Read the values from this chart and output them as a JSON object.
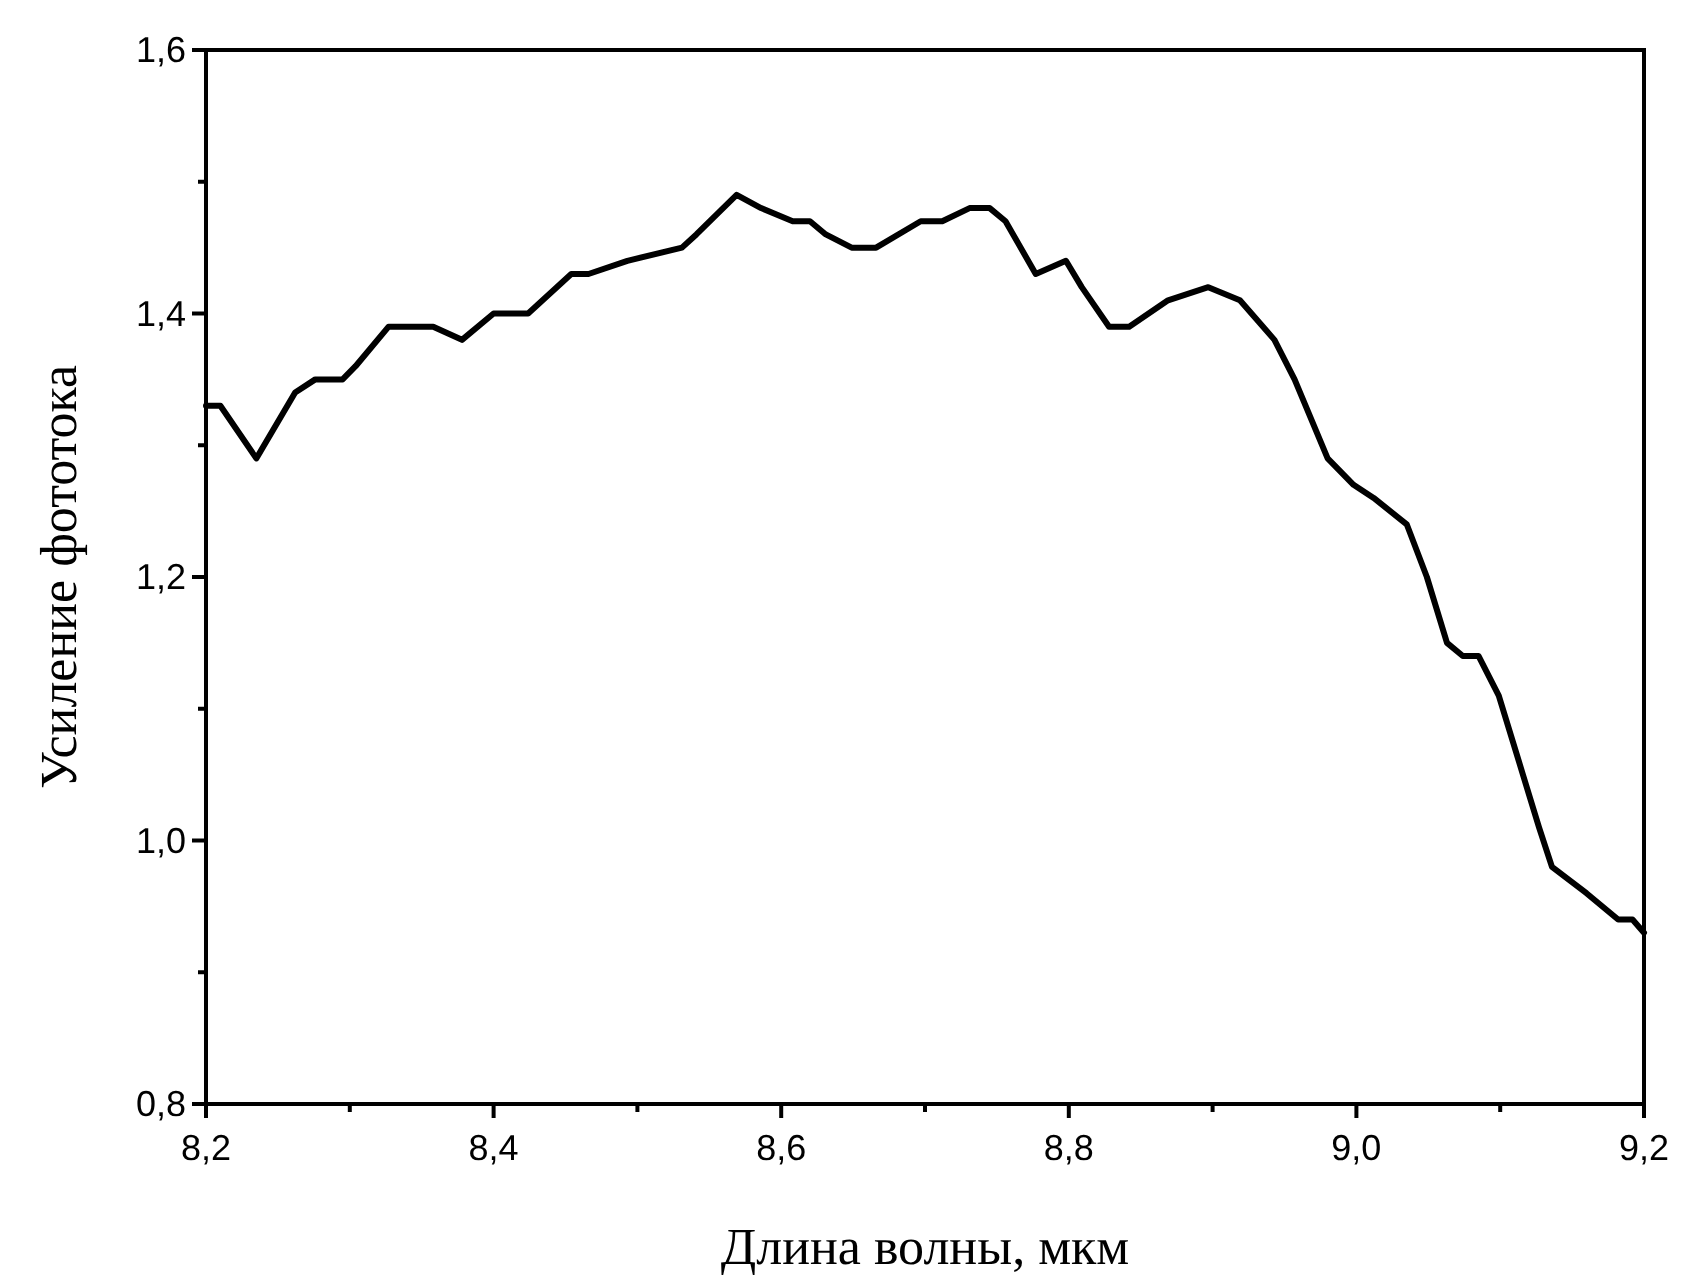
{
  "chart_data": {
    "type": "line",
    "xlabel": "Длина волны, мкм",
    "ylabel": "Усиление фототока",
    "xlim": [
      8.2,
      9.2
    ],
    "ylim": [
      0.8,
      1.6
    ],
    "xticks": [
      {
        "value": 8.2,
        "label": "8,2"
      },
      {
        "value": 8.3,
        "label": null
      },
      {
        "value": 8.4,
        "label": "8,4"
      },
      {
        "value": 8.5,
        "label": null
      },
      {
        "value": 8.6,
        "label": "8,6"
      },
      {
        "value": 8.7,
        "label": null
      },
      {
        "value": 8.8,
        "label": "8,8"
      },
      {
        "value": 8.9,
        "label": null
      },
      {
        "value": 9.0,
        "label": "9,0"
      },
      {
        "value": 9.1,
        "label": null
      },
      {
        "value": 9.2,
        "label": "9,2"
      }
    ],
    "yticks": [
      {
        "value": 0.8,
        "label": "0,8"
      },
      {
        "value": 0.9,
        "label": null
      },
      {
        "value": 1.0,
        "label": "1,0"
      },
      {
        "value": 1.1,
        "label": null
      },
      {
        "value": 1.2,
        "label": "1,2"
      },
      {
        "value": 1.3,
        "label": null
      },
      {
        "value": 1.4,
        "label": "1,4"
      },
      {
        "value": 1.5,
        "label": null
      },
      {
        "value": 1.6,
        "label": "1,6"
      }
    ],
    "marker": "none",
    "line_style": "solid",
    "series": [
      {
        "color": "#000000",
        "x": [
          8.2,
          8.21,
          8.235,
          8.262,
          8.276,
          8.295,
          8.304,
          8.327,
          8.345,
          8.358,
          8.378,
          8.4,
          8.424,
          8.454,
          8.466,
          8.493,
          8.531,
          8.541,
          8.569,
          8.586,
          8.608,
          8.62,
          8.631,
          8.649,
          8.666,
          8.697,
          8.712,
          8.731,
          8.745,
          8.756,
          8.777,
          8.798,
          8.809,
          8.828,
          8.842,
          8.869,
          8.897,
          8.919,
          8.943,
          8.957,
          8.98,
          8.998,
          9.012,
          9.035,
          9.049,
          9.063,
          9.074,
          9.085,
          9.099,
          9.113,
          9.127,
          9.136,
          9.16,
          9.182,
          9.192,
          9.2
        ],
        "values": [
          1.33,
          1.33,
          1.29,
          1.34,
          1.35,
          1.35,
          1.36,
          1.39,
          1.39,
          1.39,
          1.38,
          1.4,
          1.4,
          1.43,
          1.43,
          1.44,
          1.45,
          1.46,
          1.49,
          1.48,
          1.47,
          1.47,
          1.46,
          1.45,
          1.45,
          1.47,
          1.47,
          1.48,
          1.48,
          1.47,
          1.43,
          1.44,
          1.42,
          1.39,
          1.39,
          1.41,
          1.42,
          1.41,
          1.38,
          1.35,
          1.29,
          1.27,
          1.26,
          1.24,
          1.2,
          1.15,
          1.14,
          1.14,
          1.11,
          1.06,
          1.01,
          0.98,
          0.96,
          0.94,
          0.94,
          0.93
        ]
      }
    ]
  }
}
